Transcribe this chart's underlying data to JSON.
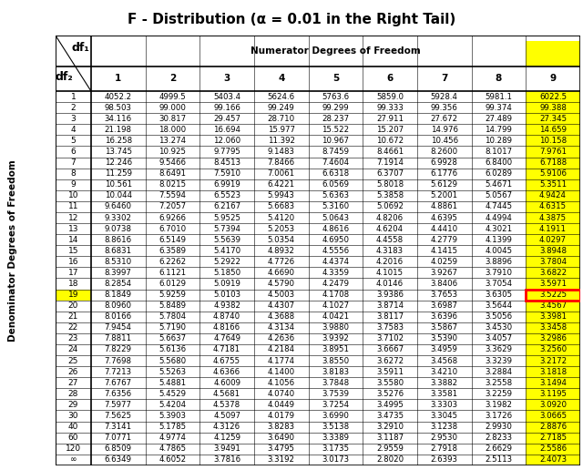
{
  "title": "F - Distribution (α = 0.01 in the Right Tail)",
  "col_header": "Numerator Degrees of Freedom",
  "row_header": "Denominator Degrees of Freedom",
  "df1_values": [
    "1",
    "2",
    "3",
    "4",
    "5",
    "6",
    "7",
    "8",
    "9"
  ],
  "df2_values": [
    "1",
    "2",
    "3",
    "4",
    "5",
    "6",
    "7",
    "8",
    "9",
    "10",
    "11",
    "12",
    "13",
    "14",
    "15",
    "16",
    "17",
    "18",
    "19",
    "20",
    "21",
    "22",
    "23",
    "24",
    "25",
    "26",
    "27",
    "28",
    "29",
    "30",
    "40",
    "60",
    "120",
    "∞"
  ],
  "table_data": [
    [
      "4052.2",
      "4999.5",
      "5403.4",
      "5624.6",
      "5763.6",
      "5859.0",
      "5928.4",
      "5981.1",
      "6022.5"
    ],
    [
      "98.503",
      "99.000",
      "99.166",
      "99.249",
      "99.299",
      "99.333",
      "99.356",
      "99.374",
      "99.388"
    ],
    [
      "34.116",
      "30.817",
      "29.457",
      "28.710",
      "28.237",
      "27.911",
      "27.672",
      "27.489",
      "27.345"
    ],
    [
      "21.198",
      "18.000",
      "16.694",
      "15.977",
      "15.522",
      "15.207",
      "14.976",
      "14.799",
      "14.659"
    ],
    [
      "16.258",
      "13.274",
      "12.060",
      "11.392",
      "10.967",
      "10.672",
      "10.456",
      "10.289",
      "10.158"
    ],
    [
      "13.745",
      "10.925",
      "9.7795",
      "9.1483",
      "8.7459",
      "8.4661",
      "8.2600",
      "8.1017",
      "7.9761"
    ],
    [
      "12.246",
      "9.5466",
      "8.4513",
      "7.8466",
      "7.4604",
      "7.1914",
      "6.9928",
      "6.8400",
      "6.7188"
    ],
    [
      "11.259",
      "8.6491",
      "7.5910",
      "7.0061",
      "6.6318",
      "6.3707",
      "6.1776",
      "6.0289",
      "5.9106"
    ],
    [
      "10.561",
      "8.0215",
      "6.9919",
      "6.4221",
      "6.0569",
      "5.8018",
      "5.6129",
      "5.4671",
      "5.3511"
    ],
    [
      "10.044",
      "7.5594",
      "6.5523",
      "5.9943",
      "5.6363",
      "5.3858",
      "5.2001",
      "5.0567",
      "4.9424"
    ],
    [
      "9.6460",
      "7.2057",
      "6.2167",
      "5.6683",
      "5.3160",
      "5.0692",
      "4.8861",
      "4.7445",
      "4.6315"
    ],
    [
      "9.3302",
      "6.9266",
      "5.9525",
      "5.4120",
      "5.0643",
      "4.8206",
      "4.6395",
      "4.4994",
      "4.3875"
    ],
    [
      "9.0738",
      "6.7010",
      "5.7394",
      "5.2053",
      "4.8616",
      "4.6204",
      "4.4410",
      "4.3021",
      "4.1911"
    ],
    [
      "8.8616",
      "6.5149",
      "5.5639",
      "5.0354",
      "4.6950",
      "4.4558",
      "4.2779",
      "4.1399",
      "4.0297"
    ],
    [
      "8.6831",
      "6.3589",
      "5.4170",
      "4.8932",
      "4.5556",
      "4.3183",
      "4.1415",
      "4.0045",
      "3.8948"
    ],
    [
      "8.5310",
      "6.2262",
      "5.2922",
      "4.7726",
      "4.4374",
      "4.2016",
      "4.0259",
      "3.8896",
      "3.7804"
    ],
    [
      "8.3997",
      "6.1121",
      "5.1850",
      "4.6690",
      "4.3359",
      "4.1015",
      "3.9267",
      "3.7910",
      "3.6822"
    ],
    [
      "8.2854",
      "6.0129",
      "5.0919",
      "4.5790",
      "4.2479",
      "4.0146",
      "3.8406",
      "3.7054",
      "3.5971"
    ],
    [
      "8.1849",
      "5.9259",
      "5.0103",
      "4.5003",
      "4.1708",
      "3.9386",
      "3.7653",
      "3.6305",
      "3.5225"
    ],
    [
      "8.0960",
      "5.8489",
      "4.9382",
      "4.4307",
      "4.1027",
      "3.8714",
      "3.6987",
      "3.5644",
      "3.4567"
    ],
    [
      "8.0166",
      "5.7804",
      "4.8740",
      "4.3688",
      "4.0421",
      "3.8117",
      "3.6396",
      "3.5056",
      "3.3981"
    ],
    [
      "7.9454",
      "5.7190",
      "4.8166",
      "4.3134",
      "3.9880",
      "3.7583",
      "3.5867",
      "3.4530",
      "3.3458"
    ],
    [
      "7.8811",
      "5.6637",
      "4.7649",
      "4.2636",
      "3.9392",
      "3.7102",
      "3.5390",
      "3.4057",
      "3.2986"
    ],
    [
      "7.8229",
      "5.6136",
      "4.7181",
      "4.2184",
      "3.8951",
      "3.6667",
      "3.4959",
      "3.3629",
      "3.2560"
    ],
    [
      "7.7698",
      "5.5680",
      "4.6755",
      "4.1774",
      "3.8550",
      "3.6272",
      "3.4568",
      "3.3239",
      "3.2172"
    ],
    [
      "7.7213",
      "5.5263",
      "4.6366",
      "4.1400",
      "3.8183",
      "3.5911",
      "3.4210",
      "3.2884",
      "3.1818"
    ],
    [
      "7.6767",
      "5.4881",
      "4.6009",
      "4.1056",
      "3.7848",
      "3.5580",
      "3.3882",
      "3.2558",
      "3.1494"
    ],
    [
      "7.6356",
      "5.4529",
      "4.5681",
      "4.0740",
      "3.7539",
      "3.5276",
      "3.3581",
      "3.2259",
      "3.1195"
    ],
    [
      "7.5977",
      "5.4204",
      "4.5378",
      "4.0449",
      "3.7254",
      "3.4995",
      "3.3303",
      "3.1982",
      "3.0920"
    ],
    [
      "7.5625",
      "5.3903",
      "4.5097",
      "4.0179",
      "3.6990",
      "3.4735",
      "3.3045",
      "3.1726",
      "3.0665"
    ],
    [
      "7.3141",
      "5.1785",
      "4.3126",
      "3.8283",
      "3.5138",
      "3.2910",
      "3.1238",
      "2.9930",
      "2.8876"
    ],
    [
      "7.0771",
      "4.9774",
      "4.1259",
      "3.6490",
      "3.3389",
      "3.1187",
      "2.9530",
      "2.8233",
      "2.7185"
    ],
    [
      "6.8509",
      "4.7865",
      "3.9491",
      "3.4795",
      "3.1735",
      "2.9559",
      "2.7918",
      "2.6629",
      "2.5586"
    ],
    [
      "6.6349",
      "4.6052",
      "3.7816",
      "3.3192",
      "3.0173",
      "2.8020",
      "2.6393",
      "2.5113",
      "2.4073"
    ]
  ],
  "highlight_row": 18,
  "highlight_col": 8,
  "highlight_color": "#FFFF00",
  "highlight_border_color": "#FF0000",
  "bg_color": "#FFFFFF",
  "title_fontsize": 11,
  "header_fontsize": 7.5,
  "df_label_fontsize": 9,
  "data_fontsize": 6.2,
  "row_label_fontsize": 6.5
}
